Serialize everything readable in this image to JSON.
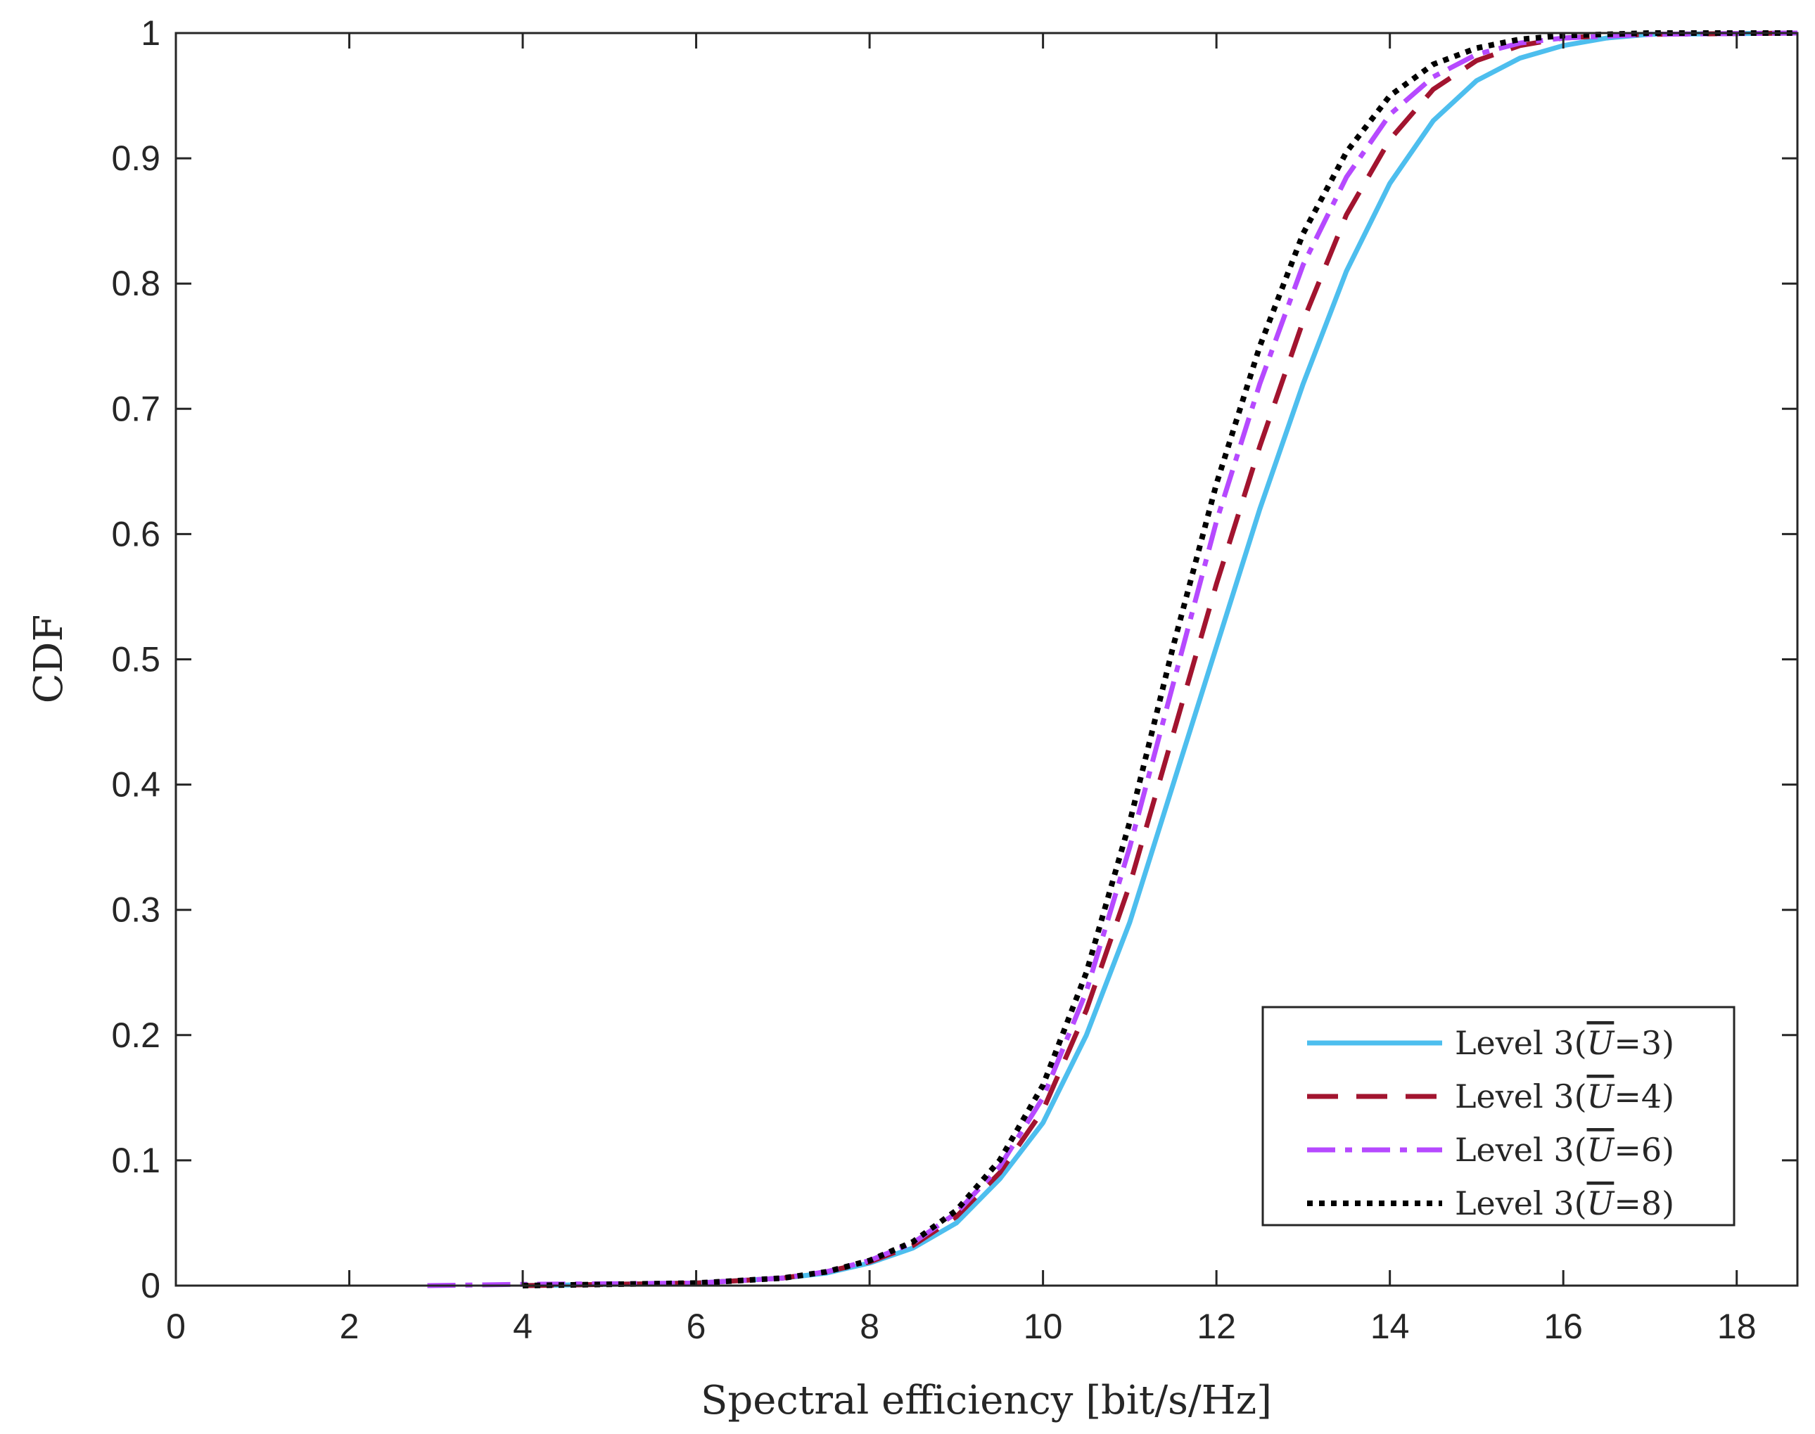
{
  "chart_data": {
    "type": "line",
    "title": "",
    "xlabel": "Spectral efficiency [bit/s/Hz]",
    "ylabel": "CDF",
    "xlim": [
      0,
      18.7
    ],
    "ylim": [
      0,
      1
    ],
    "xticks": [
      0,
      2,
      4,
      6,
      8,
      10,
      12,
      14,
      16,
      18
    ],
    "xtick_labels": [
      "0",
      "2",
      "4",
      "6",
      "8",
      "10",
      "12",
      "14",
      "16",
      "18"
    ],
    "yticks": [
      0,
      0.1,
      0.2,
      0.3,
      0.4,
      0.5,
      0.6,
      0.7,
      0.8,
      0.9,
      1
    ],
    "ytick_labels": [
      "0",
      "0.1",
      "0.2",
      "0.3",
      "0.4",
      "0.5",
      "0.6",
      "0.7",
      "0.8",
      "0.9",
      "1"
    ],
    "grid": false,
    "legend_position": "bottom-right",
    "series": [
      {
        "name": "Level 3(Ū=3)",
        "legend_prefix": "Level 3(",
        "legend_var": "U",
        "legend_suffix": "=3)",
        "color": "#4dbeee",
        "style": "solid",
        "x": [
          4.0,
          6.0,
          7.0,
          7.5,
          8.0,
          8.5,
          9.0,
          9.5,
          10.0,
          10.5,
          11.0,
          11.5,
          12.0,
          12.5,
          13.0,
          13.5,
          14.0,
          14.5,
          15.0,
          15.5,
          16.0,
          16.5,
          17.0,
          18.7
        ],
        "y": [
          0.0,
          0.002,
          0.006,
          0.01,
          0.018,
          0.03,
          0.05,
          0.085,
          0.13,
          0.2,
          0.29,
          0.4,
          0.51,
          0.62,
          0.72,
          0.81,
          0.88,
          0.93,
          0.962,
          0.98,
          0.99,
          0.996,
          0.999,
          1.0
        ]
      },
      {
        "name": "Level 3(Ū=4)",
        "legend_prefix": "Level 3(",
        "legend_var": "U",
        "legend_suffix": "=4)",
        "color": "#a2142f",
        "style": "dashed",
        "x": [
          4.0,
          6.0,
          7.0,
          7.5,
          8.0,
          8.5,
          9.0,
          9.5,
          10.0,
          10.5,
          11.0,
          11.5,
          12.0,
          12.5,
          13.0,
          13.5,
          14.0,
          14.5,
          15.0,
          15.5,
          16.0,
          16.5,
          17.0,
          18.7
        ],
        "y": [
          0.0,
          0.002,
          0.006,
          0.011,
          0.019,
          0.032,
          0.055,
          0.09,
          0.14,
          0.22,
          0.32,
          0.44,
          0.56,
          0.67,
          0.77,
          0.855,
          0.915,
          0.955,
          0.978,
          0.99,
          0.996,
          0.998,
          0.999,
          1.0
        ]
      },
      {
        "name": "Level 3(Ū=6)",
        "legend_prefix": "Level 3(",
        "legend_var": "U",
        "legend_suffix": "=6)",
        "color": "#b649ff",
        "style": "dashdot",
        "x": [
          2.9,
          4.0,
          6.0,
          7.0,
          7.5,
          8.0,
          8.5,
          9.0,
          9.5,
          10.0,
          10.5,
          11.0,
          11.5,
          12.0,
          12.5,
          13.0,
          13.5,
          14.0,
          14.5,
          15.0,
          15.5,
          16.0,
          17.0,
          18.7
        ],
        "y": [
          0.0,
          0.001,
          0.002,
          0.006,
          0.011,
          0.02,
          0.034,
          0.058,
          0.095,
          0.15,
          0.235,
          0.35,
          0.48,
          0.61,
          0.72,
          0.815,
          0.885,
          0.935,
          0.965,
          0.983,
          0.992,
          0.996,
          0.999,
          1.0
        ]
      },
      {
        "name": "Level 3(Ū=8)",
        "legend_prefix": "Level 3(",
        "legend_var": "U",
        "legend_suffix": "=8)",
        "color": "#000000",
        "style": "dotted",
        "x": [
          4.0,
          6.0,
          7.0,
          7.5,
          8.0,
          8.5,
          9.0,
          9.5,
          10.0,
          10.5,
          11.0,
          11.5,
          12.0,
          12.5,
          13.0,
          13.5,
          14.0,
          14.5,
          15.0,
          15.5,
          16.0,
          17.0,
          18.7
        ],
        "y": [
          0.0,
          0.002,
          0.006,
          0.011,
          0.02,
          0.035,
          0.06,
          0.1,
          0.16,
          0.25,
          0.37,
          0.51,
          0.64,
          0.75,
          0.84,
          0.905,
          0.95,
          0.975,
          0.988,
          0.995,
          0.998,
          1.0,
          1.0
        ]
      }
    ]
  }
}
